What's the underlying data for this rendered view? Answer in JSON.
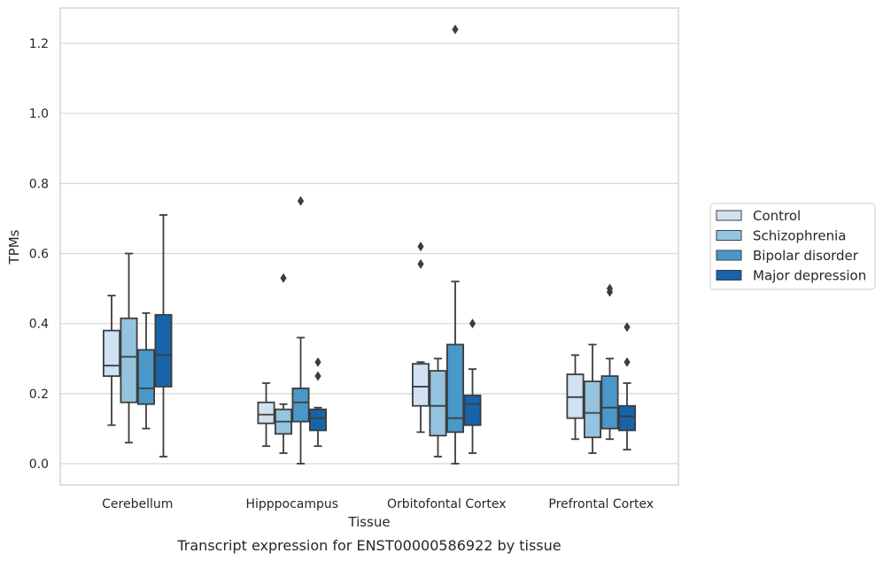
{
  "chart_data": {
    "type": "box",
    "title": "",
    "caption": "Transcript expression for ENST00000586922 by tissue",
    "xlabel": "Tissue",
    "ylabel": "TPMs",
    "ylim": [
      -0.06,
      1.3
    ],
    "yticks": [
      0.0,
      0.2,
      0.4,
      0.6,
      0.8,
      1.0,
      1.2
    ],
    "ytick_labels": [
      "0.0",
      "0.2",
      "0.4",
      "0.6",
      "0.8",
      "1.0",
      "1.2"
    ],
    "grid": "horizontal",
    "legend_position": "right",
    "categories": [
      "Cerebellum",
      "Hipppocampus",
      "Orbitofontal Cortex",
      "Prefrontal Cortex"
    ],
    "series": [
      {
        "name": "Control",
        "color": "#d0e1f2",
        "boxes": [
          {
            "whisker_low": 0.11,
            "q1": 0.25,
            "median": 0.28,
            "q3": 0.38,
            "whisker_high": 0.48,
            "outliers": []
          },
          {
            "whisker_low": 0.05,
            "q1": 0.115,
            "median": 0.14,
            "q3": 0.175,
            "whisker_high": 0.23,
            "outliers": []
          },
          {
            "whisker_low": 0.09,
            "q1": 0.165,
            "median": 0.22,
            "q3": 0.285,
            "whisker_high": 0.29,
            "outliers": [
              0.57,
              0.62
            ]
          },
          {
            "whisker_low": 0.07,
            "q1": 0.13,
            "median": 0.19,
            "q3": 0.255,
            "whisker_high": 0.31,
            "outliers": []
          }
        ]
      },
      {
        "name": "Schizophrenia",
        "color": "#94c4df",
        "boxes": [
          {
            "whisker_low": 0.06,
            "q1": 0.175,
            "median": 0.305,
            "q3": 0.415,
            "whisker_high": 0.6,
            "outliers": []
          },
          {
            "whisker_low": 0.03,
            "q1": 0.085,
            "median": 0.12,
            "q3": 0.155,
            "whisker_high": 0.17,
            "outliers": [
              0.53
            ]
          },
          {
            "whisker_low": 0.02,
            "q1": 0.08,
            "median": 0.165,
            "q3": 0.265,
            "whisker_high": 0.3,
            "outliers": []
          },
          {
            "whisker_low": 0.03,
            "q1": 0.075,
            "median": 0.145,
            "q3": 0.235,
            "whisker_high": 0.34,
            "outliers": []
          }
        ]
      },
      {
        "name": "Bipolar disorder",
        "color": "#4a98c9",
        "boxes": [
          {
            "whisker_low": 0.1,
            "q1": 0.17,
            "median": 0.215,
            "q3": 0.325,
            "whisker_high": 0.43,
            "outliers": []
          },
          {
            "whisker_low": 0.0,
            "q1": 0.12,
            "median": 0.175,
            "q3": 0.215,
            "whisker_high": 0.36,
            "outliers": [
              0.75
            ]
          },
          {
            "whisker_low": 0.0,
            "q1": 0.09,
            "median": 0.13,
            "q3": 0.34,
            "whisker_high": 0.52,
            "outliers": [
              1.24
            ]
          },
          {
            "whisker_low": 0.07,
            "q1": 0.1,
            "median": 0.16,
            "q3": 0.25,
            "whisker_high": 0.3,
            "outliers": [
              0.49,
              0.5
            ]
          }
        ]
      },
      {
        "name": "Major depression",
        "color": "#1764ab",
        "boxes": [
          {
            "whisker_low": 0.02,
            "q1": 0.22,
            "median": 0.31,
            "q3": 0.425,
            "whisker_high": 0.71,
            "outliers": []
          },
          {
            "whisker_low": 0.05,
            "q1": 0.095,
            "median": 0.13,
            "q3": 0.155,
            "whisker_high": 0.16,
            "outliers": [
              0.25,
              0.29
            ]
          },
          {
            "whisker_low": 0.03,
            "q1": 0.11,
            "median": 0.17,
            "q3": 0.195,
            "whisker_high": 0.27,
            "outliers": [
              0.4
            ]
          },
          {
            "whisker_low": 0.04,
            "q1": 0.095,
            "median": 0.135,
            "q3": 0.165,
            "whisker_high": 0.23,
            "outliers": [
              0.29,
              0.39
            ]
          }
        ]
      }
    ]
  }
}
